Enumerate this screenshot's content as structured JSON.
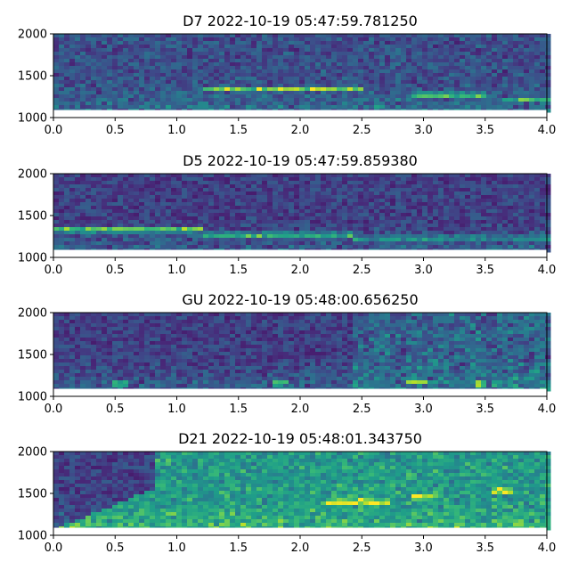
{
  "chart_data": [
    {
      "type": "heatmap",
      "title": "D7 2022-10-19 05:47:59.781250",
      "xlim": [
        0,
        4
      ],
      "ylim": [
        1000,
        2000
      ],
      "xticks": [
        "0.0",
        "0.5",
        "1.0",
        "1.5",
        "2.0",
        "2.5",
        "3.0",
        "3.5",
        "4.0"
      ],
      "yticks": [
        "1000",
        "1500",
        "2000"
      ],
      "colormap": "viridis",
      "features": [
        {
          "t0": 1.2,
          "t1": 2.5,
          "f": 1360,
          "intensity": 0.75
        },
        {
          "t0": 2.9,
          "t1": 3.5,
          "f": 1290,
          "intensity": 0.7
        },
        {
          "t0": 3.6,
          "t1": 4.0,
          "f": 1230,
          "intensity": 0.5
        }
      ]
    },
    {
      "type": "heatmap",
      "title": "D5 2022-10-19 05:47:59.859380",
      "xlim": [
        0,
        4
      ],
      "ylim": [
        1000,
        2000
      ],
      "xticks": [
        "0.0",
        "0.5",
        "1.0",
        "1.5",
        "2.0",
        "2.5",
        "3.0",
        "3.5",
        "4.0"
      ],
      "yticks": [
        "1000",
        "1500",
        "2000"
      ],
      "colormap": "viridis",
      "features": [
        {
          "t0": 0.0,
          "t1": 1.2,
          "f": 1350,
          "intensity": 0.9
        },
        {
          "t0": 1.2,
          "t1": 2.4,
          "f": 1290,
          "intensity": 0.7
        },
        {
          "t0": 2.4,
          "t1": 4.0,
          "f": 1250,
          "intensity": 0.45
        }
      ]
    },
    {
      "type": "heatmap",
      "title": "GU 2022-10-19 05:48:00.656250",
      "xlim": [
        0,
        4
      ],
      "ylim": [
        1000,
        2000
      ],
      "xticks": [
        "0.0",
        "0.5",
        "1.0",
        "1.5",
        "2.0",
        "2.5",
        "3.0",
        "3.5",
        "4.0"
      ],
      "yticks": [
        "1000",
        "1500",
        "2000"
      ],
      "colormap": "viridis",
      "features": [
        {
          "t0": 0.45,
          "t1": 0.6,
          "f": 1170,
          "intensity": 0.9
        },
        {
          "t0": 1.75,
          "t1": 1.9,
          "f": 1180,
          "intensity": 0.85
        },
        {
          "t0": 2.85,
          "t1": 3.0,
          "f": 1200,
          "intensity": 0.8
        },
        {
          "t0": 3.4,
          "t1": 3.5,
          "f": 1170,
          "intensity": 0.9
        }
      ]
    },
    {
      "type": "heatmap",
      "title": "D21 2022-10-19 05:48:01.343750",
      "xlim": [
        0,
        4
      ],
      "ylim": [
        1000,
        2000
      ],
      "xticks": [
        "0.0",
        "0.5",
        "1.0",
        "1.5",
        "2.0",
        "2.5",
        "3.0",
        "3.5",
        "4.0"
      ],
      "yticks": [
        "1000",
        "1500",
        "2000"
      ],
      "colormap": "viridis",
      "features": [
        {
          "t0": 2.2,
          "t1": 2.7,
          "f": 1420,
          "intensity": 0.95
        },
        {
          "t0": 2.9,
          "t1": 3.1,
          "f": 1480,
          "intensity": 0.75
        },
        {
          "t0": 3.55,
          "t1": 3.7,
          "f": 1550,
          "intensity": 0.7
        }
      ]
    }
  ]
}
